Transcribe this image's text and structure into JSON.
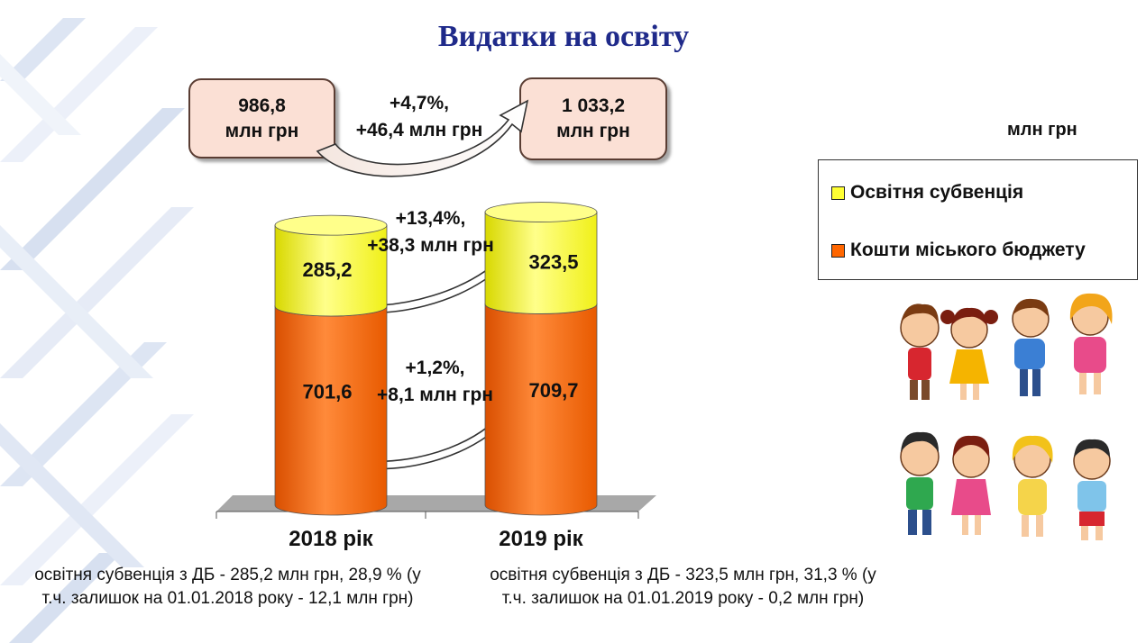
{
  "title": "Видатки на освіту",
  "unit": "млн грн",
  "total_2018": {
    "value": "986,8",
    "unit": "млн грн"
  },
  "total_2019": {
    "value": "1 033,2",
    "unit": "млн грн"
  },
  "total_change": {
    "pct": "+4,7%,",
    "abs": "+46,4 млн грн"
  },
  "subv_change": {
    "pct": "+13,4%,",
    "abs": "+38,3 млн грн"
  },
  "city_change": {
    "pct": "+1,2%,",
    "abs": "+8,1 млн грн"
  },
  "legend": [
    {
      "label": "Освітня субвенція",
      "color": "#ffff33"
    },
    {
      "label": "Кошти міського бюджету",
      "color": "#ff6600"
    }
  ],
  "notes": {
    "left_l1": "освітня субвенція з ДБ - 285,2 млн грн, 28,9 % (у",
    "left_l2": "т.ч. залишок на 01.01.2018 року - 12,1 млн грн)",
    "right_l1": "освітня субвенція з ДБ - 323,5 млн грн, 31,3 % (у",
    "right_l2": "т.ч. залишок на 01.01.2019 року - 0,2 млн грн)"
  },
  "chart_data": {
    "type": "bar",
    "stacked": true,
    "categories": [
      "2018 рік",
      "2019 рік"
    ],
    "series": [
      {
        "name": "Кошти міського бюджету",
        "values": [
          701.6,
          709.7
        ],
        "labels": [
          "701,6",
          "709,7"
        ],
        "color": "#ff6600"
      },
      {
        "name": "Освітня субвенція",
        "values": [
          285.2,
          323.5
        ],
        "labels": [
          "285,2",
          "323,5"
        ],
        "color": "#ffff33"
      }
    ],
    "legend_position": "right",
    "grid": false
  }
}
